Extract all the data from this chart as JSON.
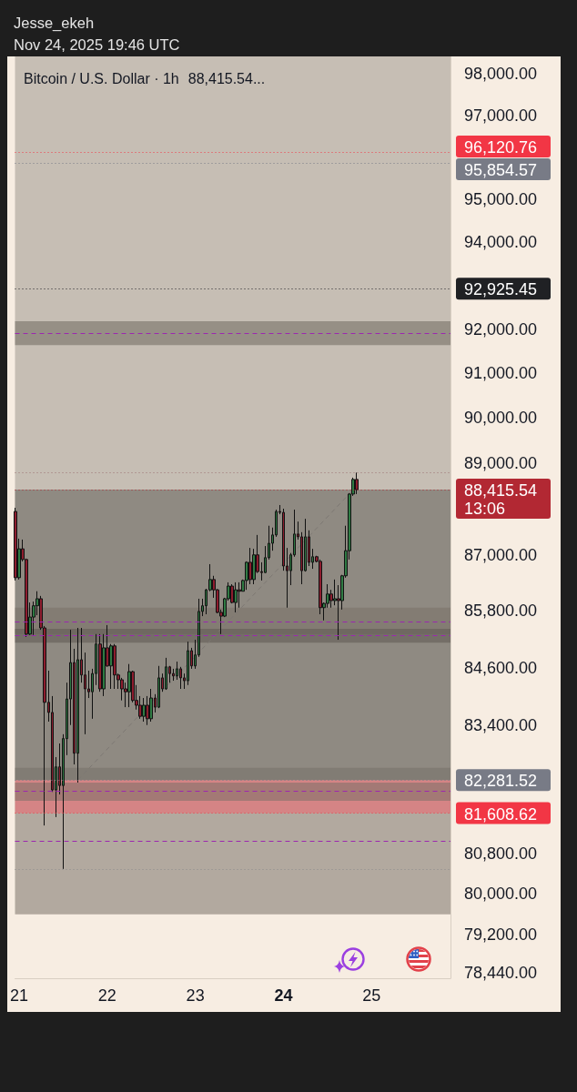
{
  "chart_data": {
    "type": "candlestick",
    "title": "Bitcoin / U.S. Dollar · 1h",
    "subtitle": "88,415.54...",
    "annotations": [
      "Jesse_ekeh",
      "Nov 24, 2025 19:46 UTC"
    ],
    "x": [
      "2025-11-20T23:00",
      "2025-11-21T00:00",
      "2025-11-21T01:00",
      "2025-11-21T02:00",
      "2025-11-21T03:00",
      "2025-11-21T04:00",
      "2025-11-21T05:00",
      "2025-11-21T06:00",
      "2025-11-21T07:00",
      "2025-11-21T08:00",
      "2025-11-21T09:00",
      "2025-11-21T10:00",
      "2025-11-21T11:00",
      "2025-11-21T12:00",
      "2025-11-21T13:00",
      "2025-11-21T14:00",
      "2025-11-21T15:00",
      "2025-11-21T16:00",
      "2025-11-21T17:00",
      "2025-11-21T18:00",
      "2025-11-21T19:00",
      "2025-11-21T20:00",
      "2025-11-21T21:00",
      "2025-11-21T22:00",
      "2025-11-21T23:00",
      "2025-11-22T00:00",
      "2025-11-22T01:00",
      "2025-11-22T02:00",
      "2025-11-22T03:00",
      "2025-11-22T04:00",
      "2025-11-22T05:00",
      "2025-11-22T06:00",
      "2025-11-22T07:00",
      "2025-11-22T08:00",
      "2025-11-22T09:00",
      "2025-11-22T10:00",
      "2025-11-22T11:00",
      "2025-11-22T12:00",
      "2025-11-22T13:00",
      "2025-11-22T14:00",
      "2025-11-22T15:00",
      "2025-11-22T16:00",
      "2025-11-22T17:00",
      "2025-11-22T18:00",
      "2025-11-22T19:00",
      "2025-11-22T20:00",
      "2025-11-22T21:00",
      "2025-11-22T22:00",
      "2025-11-22T23:00",
      "2025-11-23T00:00",
      "2025-11-23T01:00",
      "2025-11-23T02:00",
      "2025-11-23T03:00",
      "2025-11-23T04:00",
      "2025-11-23T05:00",
      "2025-11-23T06:00",
      "2025-11-23T07:00",
      "2025-11-23T08:00",
      "2025-11-23T09:00",
      "2025-11-23T10:00",
      "2025-11-23T11:00",
      "2025-11-23T12:00",
      "2025-11-23T13:00",
      "2025-11-23T14:00",
      "2025-11-23T15:00",
      "2025-11-23T16:00",
      "2025-11-23T17:00",
      "2025-11-23T18:00",
      "2025-11-23T19:00",
      "2025-11-23T20:00",
      "2025-11-23T21:00",
      "2025-11-23T22:00",
      "2025-11-23T23:00",
      "2025-11-24T00:00",
      "2025-11-24T01:00",
      "2025-11-24T02:00",
      "2025-11-24T03:00",
      "2025-11-24T04:00",
      "2025-11-24T05:00",
      "2025-11-24T06:00",
      "2025-11-24T07:00",
      "2025-11-24T08:00",
      "2025-11-24T09:00",
      "2025-11-24T10:00",
      "2025-11-24T11:00",
      "2025-11-24T12:00",
      "2025-11-24T13:00",
      "2025-11-24T14:00",
      "2025-11-24T15:00",
      "2025-11-24T16:00",
      "2025-11-24T17:00",
      "2025-11-24T18:00",
      "2025-11-24T19:00",
      "2025-11-24T20:00"
    ],
    "ohlc": [
      [
        87940,
        88020,
        86450,
        86510
      ],
      [
        86510,
        87350,
        86470,
        87130
      ],
      [
        87130,
        87330,
        86860,
        86900
      ],
      [
        86900,
        86920,
        85250,
        85310
      ],
      [
        85310,
        85980,
        85290,
        85670
      ],
      [
        85670,
        86000,
        85290,
        85910
      ],
      [
        85910,
        86220,
        85710,
        86060
      ],
      [
        86060,
        86120,
        85400,
        85440
      ],
      [
        85440,
        85480,
        81360,
        83880
      ],
      [
        83880,
        84540,
        83480,
        83670
      ],
      [
        83670,
        84010,
        82040,
        82080
      ],
      [
        82080,
        82750,
        81530,
        82550
      ],
      [
        82550,
        83030,
        81990,
        82170
      ],
      [
        82170,
        83220,
        80490,
        83130
      ],
      [
        83130,
        84290,
        82790,
        83950
      ],
      [
        83950,
        85400,
        83410,
        84710
      ],
      [
        84710,
        85000,
        82600,
        82830
      ],
      [
        82830,
        85440,
        82230,
        84770
      ],
      [
        84770,
        85440,
        84290,
        84450
      ],
      [
        84450,
        84920,
        83220,
        84160
      ],
      [
        84160,
        84540,
        83970,
        84100
      ],
      [
        84100,
        84580,
        83540,
        84480
      ],
      [
        84480,
        85310,
        84240,
        85100
      ],
      [
        85100,
        85310,
        84100,
        84160
      ],
      [
        84160,
        85310,
        84010,
        85020
      ],
      [
        85020,
        85500,
        84620,
        84640
      ],
      [
        84640,
        85100,
        84160,
        85060
      ],
      [
        85060,
        85100,
        84160,
        84450
      ],
      [
        84450,
        84480,
        84160,
        84350
      ],
      [
        84350,
        84390,
        83920,
        84160
      ],
      [
        84160,
        84290,
        83780,
        84100
      ],
      [
        84100,
        84680,
        83780,
        84520
      ],
      [
        84520,
        84540,
        83880,
        83920
      ],
      [
        83920,
        84240,
        83730,
        83820
      ],
      [
        83820,
        84010,
        83540,
        83590
      ],
      [
        83590,
        83970,
        83480,
        83820
      ],
      [
        83820,
        84010,
        83410,
        83540
      ],
      [
        83540,
        84160,
        83480,
        83970
      ],
      [
        83970,
        84050,
        83670,
        83780
      ],
      [
        83780,
        84640,
        83760,
        84390
      ],
      [
        84390,
        84480,
        84100,
        84160
      ],
      [
        84160,
        84810,
        84140,
        84620
      ],
      [
        84620,
        84640,
        84290,
        84480
      ],
      [
        84480,
        84580,
        84330,
        84430
      ],
      [
        84430,
        84730,
        84350,
        84580
      ],
      [
        84580,
        84620,
        84160,
        84390
      ],
      [
        84390,
        84480,
        84160,
        84330
      ],
      [
        84330,
        85150,
        84240,
        84960
      ],
      [
        84960,
        85020,
        84580,
        84640
      ],
      [
        84640,
        85190,
        84580,
        84870
      ],
      [
        84870,
        86060,
        84830,
        85790
      ],
      [
        85790,
        86060,
        85690,
        85910
      ],
      [
        85910,
        86270,
        85730,
        86250
      ],
      [
        86250,
        86800,
        86220,
        86470
      ],
      [
        86470,
        86550,
        86080,
        86250
      ],
      [
        86250,
        86270,
        85750,
        85770
      ],
      [
        85770,
        85830,
        85310,
        85690
      ],
      [
        85690,
        86080,
        85670,
        86060
      ],
      [
        86060,
        86410,
        86020,
        86330
      ],
      [
        86330,
        86370,
        85960,
        85980
      ],
      [
        85980,
        86410,
        85770,
        86250
      ],
      [
        86250,
        86410,
        85870,
        86220
      ],
      [
        86220,
        86470,
        86220,
        86450
      ],
      [
        86450,
        86860,
        86250,
        86840
      ],
      [
        86840,
        87150,
        86370,
        86470
      ],
      [
        86470,
        87130,
        86370,
        87000
      ],
      [
        87000,
        87430,
        86610,
        86640
      ],
      [
        86640,
        86840,
        86450,
        86620
      ],
      [
        86620,
        87190,
        86610,
        86940
      ],
      [
        86940,
        87630,
        86900,
        87250
      ],
      [
        87250,
        87590,
        87090,
        87430
      ],
      [
        87430,
        87980,
        87390,
        87940
      ],
      [
        87940,
        88080,
        87880,
        87920
      ],
      [
        87920,
        88000,
        86660,
        86760
      ],
      [
        86760,
        87150,
        85870,
        86660
      ],
      [
        86660,
        87040,
        86350,
        87000
      ],
      [
        87000,
        87980,
        86960,
        87450
      ],
      [
        87450,
        87720,
        87330,
        87390
      ],
      [
        87390,
        87490,
        86370,
        86660
      ],
      [
        86660,
        87780,
        86640,
        87390
      ],
      [
        87390,
        87530,
        86760,
        86840
      ],
      [
        86840,
        87130,
        86700,
        86960
      ],
      [
        86960,
        86980,
        86840,
        86860
      ],
      [
        86860,
        86900,
        85730,
        85870
      ],
      [
        85870,
        85980,
        85600,
        85960
      ],
      [
        85960,
        86370,
        85870,
        86160
      ],
      [
        86160,
        86250,
        85870,
        86020
      ],
      [
        86020,
        86470,
        85920,
        86060
      ],
      [
        86060,
        86350,
        85190,
        86020
      ],
      [
        86020,
        86570,
        85830,
        86550
      ],
      [
        86550,
        87630,
        86510,
        87090
      ],
      [
        87090,
        88340,
        86900,
        88320
      ],
      [
        88320,
        88680,
        88280,
        88640
      ],
      [
        88640,
        88790,
        88320,
        88415.54
      ]
    ],
    "colors": [
      "#8d1d2e",
      "#2f7a43",
      "#8d1d2e",
      "#8d1d2e",
      "#2f7a43",
      "#2f7a43",
      "#2f7a43",
      "#8d1d2e",
      "#8d1d2e",
      "#8d1d2e",
      "#8d1d2e",
      "#2f7a43",
      "#8d1d2e",
      "#2f7a43",
      "#2f7a43",
      "#2f7a43",
      "#8d1d2e",
      "#2f7a43",
      "#8d1d2e",
      "#8d1d2e",
      "#8d1d2e",
      "#2f7a43",
      "#2f7a43",
      "#8d1d2e",
      "#2f7a43",
      "#8d1d2e",
      "#2f7a43",
      "#8d1d2e",
      "#8d1d2e",
      "#8d1d2e",
      "#8d1d2e",
      "#2f7a43",
      "#8d1d2e",
      "#8d1d2e",
      "#8d1d2e",
      "#2f7a43",
      "#8d1d2e",
      "#2f7a43",
      "#8d1d2e",
      "#2f7a43",
      "#8d1d2e",
      "#2f7a43",
      "#8d1d2e",
      "#8d1d2e",
      "#2f7a43",
      "#8d1d2e",
      "#8d1d2e",
      "#2f7a43",
      "#8d1d2e",
      "#2f7a43",
      "#2f7a43",
      "#2f7a43",
      "#2f7a43",
      "#2f7a43",
      "#8d1d2e",
      "#8d1d2e",
      "#8d1d2e",
      "#2f7a43",
      "#2f7a43",
      "#8d1d2e",
      "#2f7a43",
      "#8d1d2e",
      "#2f7a43",
      "#2f7a43",
      "#8d1d2e",
      "#2f7a43",
      "#8d1d2e",
      "#8d1d2e",
      "#2f7a43",
      "#2f7a43",
      "#2f7a43",
      "#2f7a43",
      "#8d1d2e",
      "#8d1d2e",
      "#8d1d2e",
      "#2f7a43",
      "#2f7a43",
      "#8d1d2e",
      "#8d1d2e",
      "#2f7a43",
      "#8d1d2e",
      "#2f7a43",
      "#8d1d2e",
      "#8d1d2e",
      "#2f7a43",
      "#2f7a43",
      "#8d1d2e",
      "#2f7a43",
      "#8d1d2e",
      "#2f7a43",
      "#2f7a43",
      "#2f7a43",
      "#2f7a43",
      "#8d1d2e"
    ],
    "series": [
      {
        "type": "line",
        "x": [
          "2025-11-21T16:00",
          "2025-11-24T19:00"
        ],
        "values": [
          82281.52,
          88415.54
        ],
        "color": "#7d7873",
        "line_style": "dashed"
      }
    ],
    "xlim": [
      "2025-11-20T22:53",
      "2025-11-25T21:30"
    ],
    "xticks": [
      {
        "value": "2025-11-21",
        "label": "21"
      },
      {
        "value": "2025-11-22",
        "label": "22"
      },
      {
        "value": "2025-11-23",
        "label": "23"
      },
      {
        "value": "2025-11-24",
        "label": "24"
      },
      {
        "value": "2025-11-25",
        "label": "25"
      }
    ],
    "ylim": [
      78340,
      98430
    ],
    "log": true,
    "yticks": [
      {
        "value": 98000,
        "label": "98,000.00"
      },
      {
        "value": 97000,
        "label": "97,000.00"
      },
      {
        "value": 95000,
        "label": "95,000.00"
      },
      {
        "value": 94000,
        "label": "94,000.00"
      },
      {
        "value": 92000,
        "label": "92,000.00"
      },
      {
        "value": 91000,
        "label": "91,000.00"
      },
      {
        "value": 90000,
        "label": "90,000.00"
      },
      {
        "value": 89000,
        "label": "89,000.00"
      },
      {
        "value": 87000,
        "label": "87,000.00"
      },
      {
        "value": 85800,
        "label": "85,800.00"
      },
      {
        "value": 84600,
        "label": "84,600.00"
      },
      {
        "value": 83400,
        "label": "83,400.00"
      },
      {
        "value": 80800,
        "label": "80,800.00"
      },
      {
        "value": 80000,
        "label": "80,000.00"
      },
      {
        "value": 79200,
        "label": "79,200.00"
      },
      {
        "value": 78440,
        "label": "78,440.00"
      }
    ],
    "bands": [
      {
        "axis": "y",
        "from": 79590,
        "to": 82530,
        "color": "#7a7168"
      },
      {
        "axis": "y",
        "from": 82281.52,
        "to": 98430,
        "color": "#9e978e"
      },
      {
        "axis": "y",
        "from": 82281.52,
        "to": 88415.54,
        "color": "#625e59"
      },
      {
        "axis": "y",
        "from": 81608.62,
        "to": 82281.52,
        "color": "#f26670"
      },
      {
        "axis": "y",
        "from": 91640,
        "to": 92180,
        "color": "#6f675e"
      },
      {
        "axis": "y",
        "from": 85310,
        "to": 85870,
        "color": "#7a7168"
      },
      {
        "axis": "y",
        "from": 85130,
        "to": 85420,
        "color": "#5e5852"
      },
      {
        "axis": "y",
        "from": 81860,
        "to": 82230,
        "color": "#7a7168"
      }
    ],
    "ref_lines": [
      {
        "axis": "y",
        "value": 96120.76,
        "label": "96,120.76",
        "color": "#f23645",
        "line_style": "dotted"
      },
      {
        "axis": "y",
        "value": 95854.57,
        "label": "95,854.57",
        "color": "#787b86",
        "line_style": "dotted"
      },
      {
        "axis": "y",
        "value": 92925.45,
        "label": "92,925.45",
        "color": "#202124",
        "line_style": "dotted"
      },
      {
        "axis": "y",
        "value": 88790,
        "color": "#9a7272",
        "line_style": "dotted"
      },
      {
        "axis": "y",
        "value": 88415.54,
        "label": "88,415.54\n13:06",
        "color": "#b22833",
        "line_style": "dotted"
      },
      {
        "axis": "y",
        "value": 82281.52,
        "label": "82,281.52",
        "color": "#787b86",
        "line_style": "dotted"
      },
      {
        "axis": "y",
        "value": 81608.62,
        "label": "81,608.62",
        "color": "#f23645",
        "line_style": "dotted"
      },
      {
        "axis": "y",
        "value": 80490,
        "color": "#8a8a8a",
        "line_style": "dotted"
      },
      {
        "axis": "y",
        "value": 91910,
        "color": "#9c27b0",
        "line_style": "dashed"
      },
      {
        "axis": "y",
        "value": 85580,
        "color": "#9c27b0",
        "line_style": "dashed"
      },
      {
        "axis": "y",
        "value": 85290,
        "color": "#9c27b0",
        "line_style": "dashed"
      },
      {
        "axis": "y",
        "value": 82060,
        "color": "#9c27b0",
        "line_style": "dashed"
      },
      {
        "axis": "y",
        "value": 81050,
        "color": "#9c27b0",
        "line_style": "dashed"
      }
    ]
  }
}
